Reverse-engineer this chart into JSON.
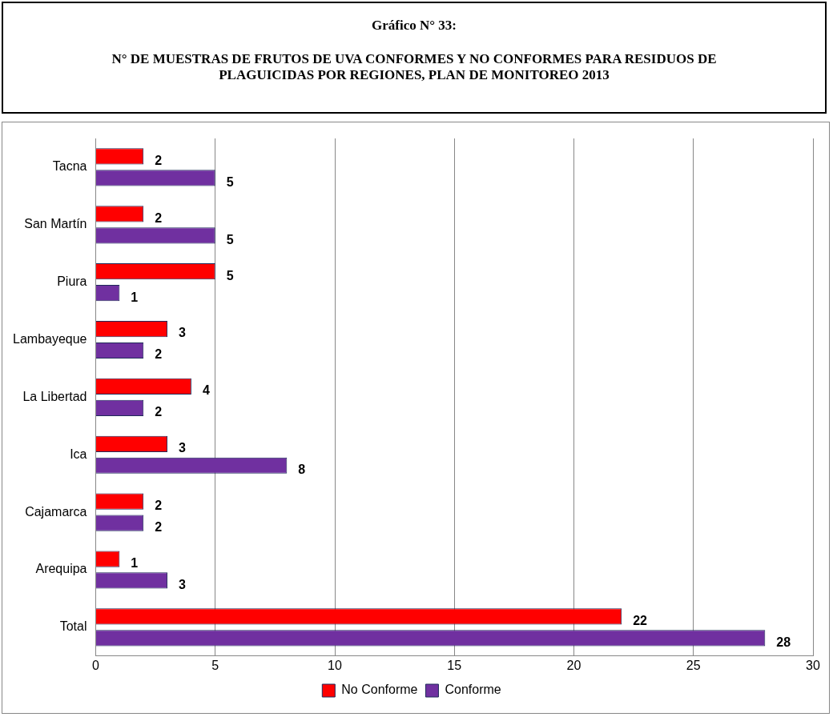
{
  "chart_data": {
    "type": "bar",
    "orientation": "horizontal",
    "title": "Gráfico N° 33:",
    "subtitle": "N° DE MUESTRAS DE FRUTOS DE UVA CONFORMES Y NO CONFORMES PARA RESIDUOS DE PLAGUICIDAS POR REGIONES, PLAN DE MONITOREO 2013",
    "categories": [
      "Tacna",
      "San Martín",
      "Piura",
      "Lambayeque",
      "La Libertad",
      "Ica",
      "Cajamarca",
      "Arequipa",
      "Total"
    ],
    "series": [
      {
        "name": "No Conforme",
        "color": "#ff0000",
        "values": [
          2,
          2,
          5,
          3,
          4,
          3,
          2,
          1,
          22
        ]
      },
      {
        "name": "Conforme",
        "color": "#7030a0",
        "values": [
          5,
          5,
          1,
          2,
          2,
          8,
          2,
          3,
          28
        ]
      }
    ],
    "xlim": [
      0,
      30
    ],
    "xticks": [
      0,
      5,
      10,
      15,
      20,
      25,
      30
    ],
    "grid": "x",
    "legend": "bottom",
    "data_labels": true
  }
}
